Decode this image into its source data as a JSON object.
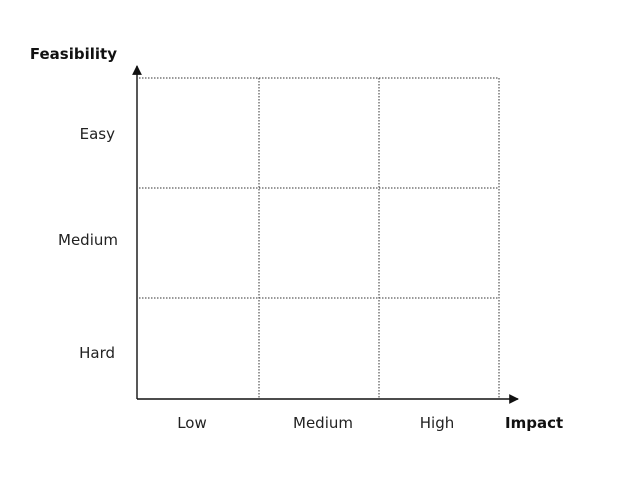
{
  "matrix": {
    "y_axis": {
      "title": "Feasibility",
      "levels": [
        "Easy",
        "Medium",
        "Hard"
      ]
    },
    "x_axis": {
      "title": "Impact",
      "levels": [
        "Low",
        "Medium",
        "High"
      ]
    },
    "rows": 3,
    "cols": 3
  }
}
